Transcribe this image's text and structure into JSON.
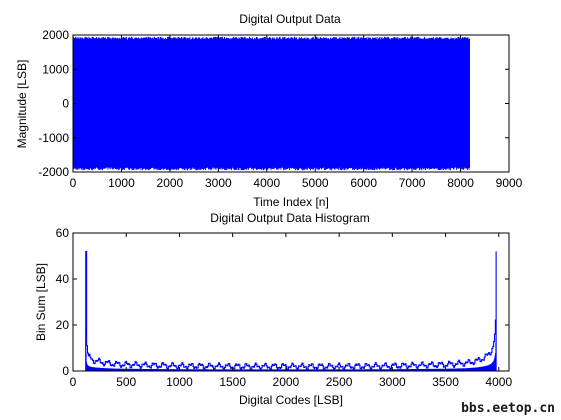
{
  "colors": {
    "series": "#0000ff",
    "axes": "#000000",
    "background": "#ffffff"
  },
  "watermark": "bbs.eetop.cn",
  "chart_data": [
    {
      "type": "line",
      "title": "Digital Output Data",
      "xlabel": "Time Index [n]",
      "ylabel": "Magnitude [LSB]",
      "xlim": [
        0,
        9000
      ],
      "ylim": [
        -2000,
        2000
      ],
      "xticks": [
        0,
        1000,
        2000,
        3000,
        4000,
        5000,
        6000,
        7000,
        8000,
        9000
      ],
      "yticks": [
        -2000,
        -1000,
        0,
        1000,
        2000
      ],
      "grid": false,
      "series": [
        {
          "x_range": [
            0,
            8192
          ],
          "y_range": [
            -1950,
            1950
          ],
          "pattern": "dense oscillation filling the band between the extremes",
          "color": "#0000ff"
        }
      ]
    },
    {
      "type": "line",
      "title": "Digital Output Data Histogram",
      "xlabel": "Digital Codes [LSB]",
      "ylabel": "Bin Sum [LSB]",
      "xlim": [
        0,
        4096
      ],
      "ylim": [
        0,
        60
      ],
      "xticks": [
        0,
        500,
        1000,
        1500,
        2000,
        2500,
        3000,
        3500,
        4000
      ],
      "yticks": [
        0,
        20,
        40,
        60
      ],
      "grid": false,
      "series": [
        {
          "x": [
            120,
            125,
            130,
            140,
            150,
            175,
            200,
            250,
            300,
            400,
            500,
            700,
            1000,
            1500,
            2000,
            2500,
            3000,
            3500,
            3700,
            3800,
            3850,
            3900,
            3930,
            3950,
            3960,
            3970,
            3975
          ],
          "y": [
            52,
            14,
            9,
            7,
            6,
            5,
            4.5,
            4,
            3.5,
            3,
            2.8,
            2.5,
            2.2,
            2,
            2,
            2,
            2.2,
            2.8,
            3.5,
            4.5,
            5.5,
            7,
            9,
            12,
            16,
            24,
            52
          ],
          "color": "#0000ff"
        }
      ]
    }
  ]
}
